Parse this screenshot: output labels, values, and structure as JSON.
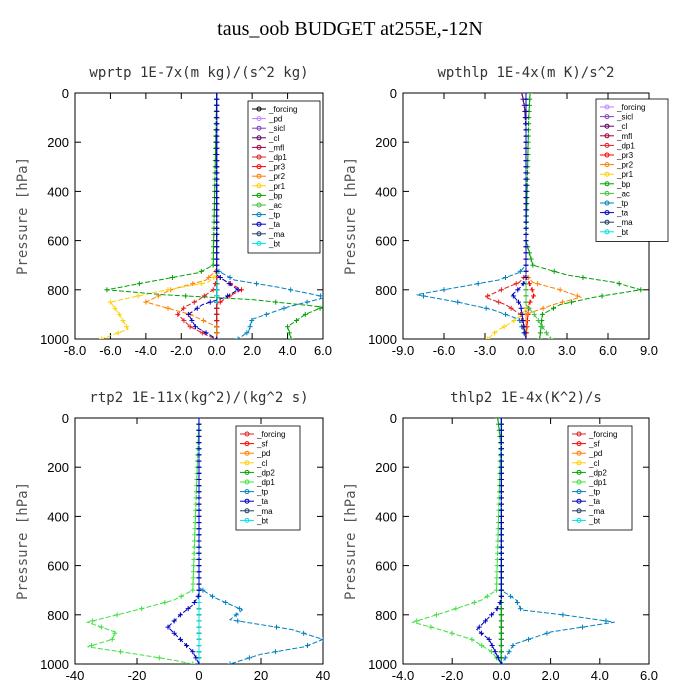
{
  "figure_title": "taus_oob  BUDGET at255E,-12N",
  "chart_data": [
    {
      "type": "line",
      "title": "wprtp  1E-7x(m kg)/(s^2 kg)",
      "ylabel": "Pressure [hPa]",
      "xlim": [
        -8,
        6
      ],
      "ylim": [
        1000,
        0
      ],
      "xticks": [
        "-8.0",
        "-6.0",
        "-4.0",
        "-2.0",
        "0.0",
        "2.0",
        "4.0",
        "6.0"
      ],
      "yticks": [
        "0",
        "200",
        "400",
        "600",
        "800",
        "1000"
      ],
      "legend": [
        "_forcing",
        "_pd",
        "_sicl",
        "_cl",
        "_mfl",
        "_dp1",
        "_pr3",
        "_pr2",
        "_pr1",
        "_bp",
        "_ac",
        "_tp",
        "_ta",
        "_ma",
        "_bt"
      ],
      "series": [
        {
          "name": "_forcing",
          "color": "#000000",
          "x": [
            0,
            0
          ],
          "y": [
            0,
            1000
          ]
        },
        {
          "name": "_pd",
          "color": "#c080ff",
          "x": [
            0,
            0
          ],
          "y": [
            0,
            1000
          ]
        },
        {
          "name": "_sicl",
          "color": "#8040c0",
          "x": [
            0,
            0
          ],
          "y": [
            0,
            1000
          ]
        },
        {
          "name": "_cl",
          "color": "#600060",
          "x": [
            0,
            0
          ],
          "y": [
            0,
            1000
          ]
        },
        {
          "name": "_mfl",
          "color": "#a00040",
          "x": [
            0,
            0
          ],
          "y": [
            0,
            1000
          ]
        },
        {
          "name": "_dp1",
          "color": "#e02020",
          "x": [
            0,
            0,
            0,
            -0.2,
            -1.0,
            -1.8,
            -2.2,
            -1.5,
            -0.4,
            0
          ],
          "y": [
            0,
            700,
            760,
            800,
            840,
            870,
            900,
            950,
            990,
            1000
          ]
        },
        {
          "name": "_pr3",
          "color": "#ff0000",
          "x": [
            0,
            0,
            0.4,
            1.4,
            0.6,
            0,
            0
          ],
          "y": [
            0,
            740,
            760,
            800,
            830,
            860,
            1000
          ]
        },
        {
          "name": "_pr2",
          "color": "#ff8000",
          "x": [
            0,
            0,
            -0.6,
            -2.6,
            -4.0,
            -1.5,
            0,
            0
          ],
          "y": [
            0,
            720,
            760,
            800,
            850,
            900,
            950,
            1000
          ]
        },
        {
          "name": "_pr1",
          "color": "#ffd000",
          "x": [
            0,
            0,
            -0.5,
            -3.5,
            -6.0,
            -5.5,
            -5.0,
            -6.5
          ],
          "y": [
            0,
            740,
            770,
            810,
            850,
            900,
            960,
            1000
          ]
        },
        {
          "name": "_bp",
          "color": "#00a000",
          "x": [
            0,
            -0.2,
            -1.0,
            -4.0,
            -6.2,
            -3.0,
            2.0,
            6.0,
            5.0,
            4.0,
            4.2
          ],
          "y": [
            0,
            700,
            730,
            770,
            800,
            820,
            840,
            870,
            900,
            950,
            1000
          ]
        },
        {
          "name": "_ac",
          "color": "#40c040",
          "x": [
            0,
            0
          ],
          "y": [
            0,
            1000
          ]
        },
        {
          "name": "_tp",
          "color": "#0080c0",
          "x": [
            0,
            0,
            1.0,
            3.5,
            6.2,
            4.0,
            2.0,
            1.8,
            1.2
          ],
          "y": [
            0,
            720,
            760,
            790,
            830,
            870,
            920,
            970,
            1000
          ]
        },
        {
          "name": "_ta",
          "color": "#0000c0",
          "x": [
            0,
            0,
            0.6,
            1.2,
            0.5,
            -0.8,
            -1.6,
            -1.2,
            0
          ],
          "y": [
            0,
            740,
            770,
            800,
            830,
            860,
            900,
            950,
            1000
          ]
        },
        {
          "name": "_ma",
          "color": "#204060",
          "x": [
            0,
            0
          ],
          "y": [
            0,
            1000
          ]
        },
        {
          "name": "_bt",
          "color": "#00e0e0",
          "x": [
            0,
            0
          ],
          "y": [
            0,
            1000
          ]
        }
      ]
    },
    {
      "type": "line",
      "title": "wpthlp  1E-4x(m K)/s^2",
      "ylabel": "Pressure [hPa]",
      "xlim": [
        -9,
        9
      ],
      "ylim": [
        1000,
        0
      ],
      "xticks": [
        "-9.0",
        "-6.0",
        "-3.0",
        "0.0",
        "3.0",
        "6.0",
        "9.0"
      ],
      "yticks": [
        "0",
        "200",
        "400",
        "600",
        "800",
        "1000"
      ],
      "legend": [
        "_forcing",
        "_sicl",
        "_cl",
        "_mfl",
        "_dp1",
        "_pr3",
        "_pr2",
        "_pr1",
        "_bp",
        "_ac",
        "_tp",
        "_ta",
        "_ma",
        "_bt"
      ],
      "series": [
        {
          "name": "_forcing",
          "color": "#c080ff",
          "x": [
            0,
            0
          ],
          "y": [
            0,
            1000
          ]
        },
        {
          "name": "_sicl",
          "color": "#8040c0",
          "x": [
            0,
            0
          ],
          "y": [
            0,
            1000
          ]
        },
        {
          "name": "_cl",
          "color": "#600060",
          "x": [
            -0.3,
            -0.1,
            0,
            0
          ],
          "y": [
            0,
            60,
            150,
            1000
          ]
        },
        {
          "name": "_mfl",
          "color": "#a00040",
          "x": [
            0,
            0
          ],
          "y": [
            0,
            1000
          ]
        },
        {
          "name": "_dp1",
          "color": "#e02020",
          "x": [
            0,
            0,
            -0.5,
            -1.8,
            -3.0,
            -1.5,
            -0.4,
            0
          ],
          "y": [
            0,
            740,
            770,
            800,
            830,
            860,
            900,
            1000
          ]
        },
        {
          "name": "_pr3",
          "color": "#ff0000",
          "x": [
            0,
            0,
            0.3,
            0.6,
            0.2,
            0
          ],
          "y": [
            0,
            750,
            780,
            820,
            860,
            1000
          ]
        },
        {
          "name": "_pr2",
          "color": "#ff8000",
          "x": [
            0,
            0,
            0.5,
            2.5,
            4.0,
            2.0,
            0,
            0
          ],
          "y": [
            0,
            740,
            770,
            800,
            830,
            860,
            900,
            1000
          ]
        },
        {
          "name": "_pr1",
          "color": "#ffd000",
          "x": [
            0,
            0,
            -0.5,
            -1.0,
            -1.6,
            -2.2,
            -2.8
          ],
          "y": [
            0,
            880,
            910,
            930,
            950,
            970,
            1000
          ]
        },
        {
          "name": "_bp",
          "color": "#00a000",
          "x": [
            0.3,
            0.2,
            0,
            0.5,
            3.0,
            6.5,
            8.4,
            5.0,
            2.5,
            1.2,
            1.0
          ],
          "y": [
            0,
            100,
            600,
            700,
            740,
            770,
            800,
            830,
            860,
            900,
            1000
          ]
        },
        {
          "name": "_ac",
          "color": "#40c040",
          "x": [
            0,
            0,
            0.6,
            1.2,
            1.8
          ],
          "y": [
            0,
            860,
            900,
            950,
            1000
          ]
        },
        {
          "name": "_tp",
          "color": "#0080c0",
          "x": [
            0,
            0,
            -0.5,
            -2.0,
            -5.0,
            -8.0,
            -5.0,
            -2.5,
            -0.5,
            0
          ],
          "y": [
            0,
            700,
            730,
            760,
            790,
            820,
            850,
            880,
            920,
            1000
          ]
        },
        {
          "name": "_ta",
          "color": "#0000c0",
          "x": [
            0,
            0,
            -0.4,
            -1.0,
            -0.4,
            0
          ],
          "y": [
            0,
            760,
            790,
            820,
            860,
            1000
          ]
        },
        {
          "name": "_ma",
          "color": "#204060",
          "x": [
            0,
            0
          ],
          "y": [
            0,
            1000
          ]
        },
        {
          "name": "_bt",
          "color": "#00e0e0",
          "x": [
            0,
            0
          ],
          "y": [
            0,
            1000
          ]
        }
      ]
    },
    {
      "type": "line",
      "title": "rtp2  1E-11x(kg^2)/(kg^2 s)",
      "ylabel": "Pressure [hPa]",
      "xlim": [
        -40,
        40
      ],
      "ylim": [
        1000,
        0
      ],
      "xticks": [
        "-40",
        "-20",
        "0",
        "20",
        "40"
      ],
      "yticks": [
        "0",
        "200",
        "400",
        "600",
        "800",
        "1000"
      ],
      "legend": [
        "_forcing",
        "_sf",
        "_pd",
        "_cl",
        "_dp2",
        "_dp1",
        "_tp",
        "_ta",
        "_ma",
        "_bt"
      ],
      "series": [
        {
          "name": "_forcing",
          "color": "#e02020",
          "x": [
            0,
            0
          ],
          "y": [
            0,
            1000
          ]
        },
        {
          "name": "_sf",
          "color": "#ff0000",
          "x": [
            0,
            0
          ],
          "y": [
            0,
            1000
          ]
        },
        {
          "name": "_pd",
          "color": "#ff8000",
          "x": [
            0,
            0
          ],
          "y": [
            0,
            1000
          ]
        },
        {
          "name": "_cl",
          "color": "#ffd000",
          "x": [
            0,
            0
          ],
          "y": [
            0,
            1000
          ]
        },
        {
          "name": "_dp2",
          "color": "#00a000",
          "x": [
            0,
            0
          ],
          "y": [
            0,
            1000
          ]
        },
        {
          "name": "_dp1",
          "color": "#40e040",
          "x": [
            0,
            -2,
            -8,
            -20,
            -36,
            -27,
            -28,
            -36,
            -20,
            -8,
            -2
          ],
          "y": [
            0,
            700,
            740,
            780,
            830,
            870,
            900,
            930,
            960,
            985,
            1000
          ]
        },
        {
          "name": "_tp",
          "color": "#0080c0",
          "x": [
            0,
            0,
            5,
            14,
            10,
            30,
            40,
            34,
            20,
            10
          ],
          "y": [
            0,
            690,
            730,
            780,
            820,
            860,
            900,
            930,
            960,
            1000
          ]
        },
        {
          "name": "_ta",
          "color": "#0000c0",
          "x": [
            0,
            0,
            -2,
            -6,
            -10,
            -6,
            -2,
            0
          ],
          "y": [
            0,
            720,
            760,
            800,
            850,
            900,
            950,
            1000
          ]
        },
        {
          "name": "_ma",
          "color": "#204060",
          "x": [
            0,
            0
          ],
          "y": [
            0,
            1000
          ]
        },
        {
          "name": "_bt",
          "color": "#00e0e0",
          "x": [
            0,
            0
          ],
          "y": [
            0,
            1000
          ]
        }
      ]
    },
    {
      "type": "line",
      "title": "thlp2  1E-4x(K^2)/s",
      "ylabel": "Pressure [hPa]",
      "xlim": [
        -4,
        6
      ],
      "ylim": [
        1000,
        0
      ],
      "xticks": [
        "-4.0",
        "-2.0",
        "0.0",
        "2.0",
        "4.0",
        "6.0"
      ],
      "yticks": [
        "0",
        "200",
        "400",
        "600",
        "800",
        "1000"
      ],
      "legend": [
        "_forcing",
        "_sf",
        "_pd",
        "_cl",
        "_dp2",
        "_dp1",
        "_tp",
        "_ta",
        "_ma",
        "_bt"
      ],
      "series": [
        {
          "name": "_forcing",
          "color": "#e02020",
          "x": [
            0,
            0
          ],
          "y": [
            0,
            1000
          ]
        },
        {
          "name": "_sf",
          "color": "#ff0000",
          "x": [
            0,
            0
          ],
          "y": [
            0,
            1000
          ]
        },
        {
          "name": "_pd",
          "color": "#ff8000",
          "x": [
            0,
            0
          ],
          "y": [
            0,
            1000
          ]
        },
        {
          "name": "_cl",
          "color": "#ffd000",
          "x": [
            0,
            0
          ],
          "y": [
            0,
            1000
          ]
        },
        {
          "name": "_dp2",
          "color": "#00a000",
          "x": [
            -0.15,
            -0.05,
            0,
            0
          ],
          "y": [
            0,
            80,
            200,
            1000
          ]
        },
        {
          "name": "_dp1",
          "color": "#40e040",
          "x": [
            0,
            -0.2,
            -0.8,
            -2.0,
            -3.6,
            -2.5,
            -1.2,
            -0.4,
            0
          ],
          "y": [
            0,
            700,
            740,
            780,
            830,
            860,
            900,
            950,
            1000
          ]
        },
        {
          "name": "_tp",
          "color": "#0080c0",
          "x": [
            0,
            0,
            0.6,
            0.8,
            2.5,
            4.6,
            2.0,
            0.5,
            0
          ],
          "y": [
            0,
            700,
            740,
            780,
            800,
            830,
            870,
            920,
            1000
          ]
        },
        {
          "name": "_ta",
          "color": "#0000c0",
          "x": [
            0,
            0,
            -0.2,
            -0.6,
            -1.0,
            -0.5,
            0
          ],
          "y": [
            0,
            740,
            780,
            820,
            860,
            900,
            1000
          ]
        },
        {
          "name": "_ma",
          "color": "#204060",
          "x": [
            0,
            0
          ],
          "y": [
            0,
            1000
          ]
        },
        {
          "name": "_bt",
          "color": "#00e0e0",
          "x": [
            0,
            0
          ],
          "y": [
            0,
            1000
          ]
        }
      ]
    }
  ]
}
